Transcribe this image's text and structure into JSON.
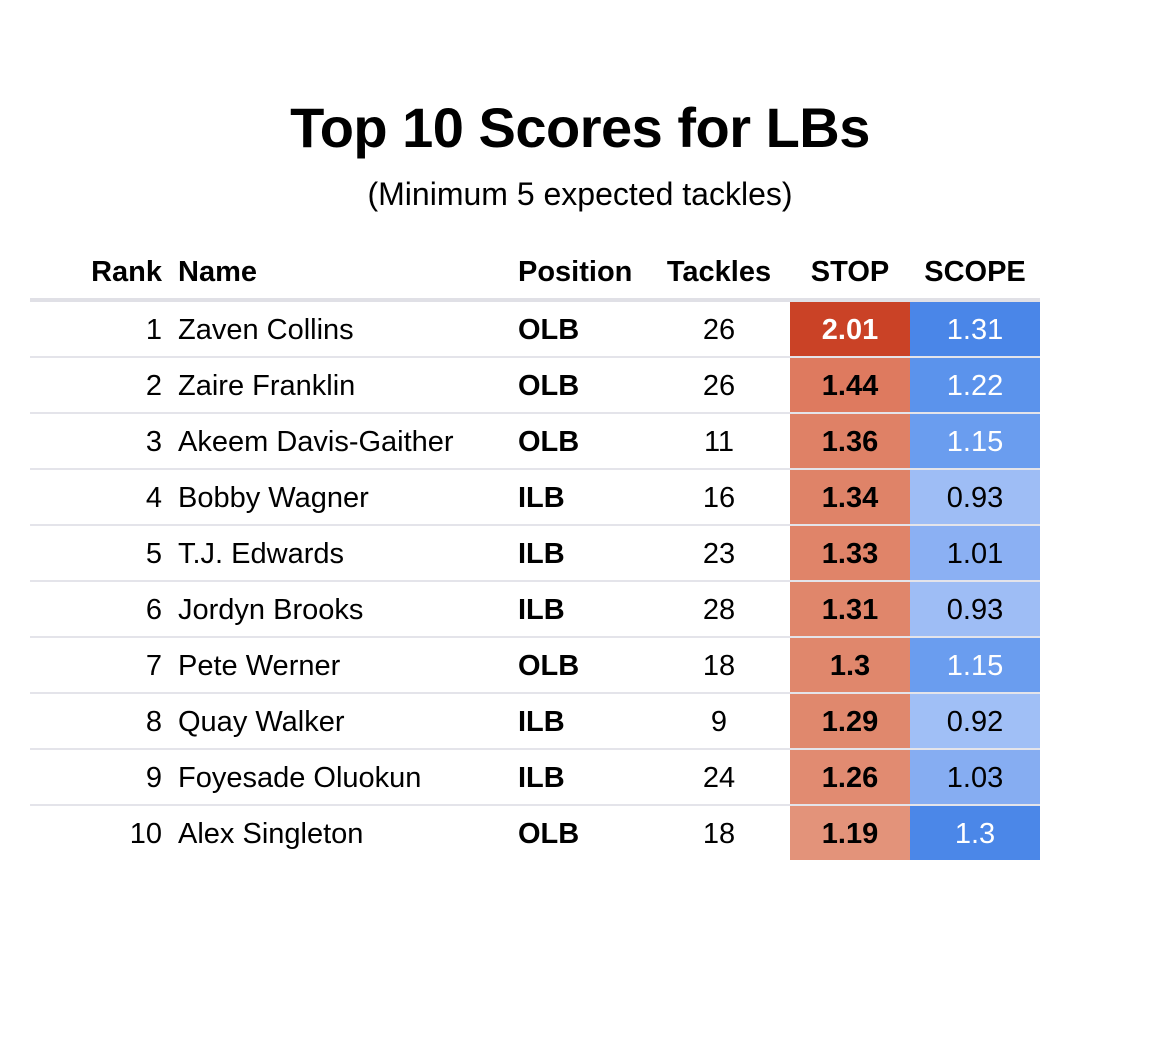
{
  "chart_data": {
    "type": "table",
    "title": "Top 10 Scores for LBs",
    "subtitle": "(Minimum 5 expected tackles)",
    "columns": [
      "Rank",
      "Name",
      "Position",
      "Tackles",
      "STOP",
      "SCOPE"
    ],
    "rows": [
      {
        "rank": "1",
        "name": "Zaven Collins",
        "position": "OLB",
        "tackles": "26",
        "stop": "2.01",
        "scope": "1.31",
        "stop_color": "#ca4226",
        "scope_color": "#4a86e8",
        "stop_text_color": "#ffffff",
        "scope_text_color": "#ffffff"
      },
      {
        "rank": "2",
        "name": "Zaire Franklin",
        "position": "OLB",
        "tackles": "26",
        "stop": "1.44",
        "scope": "1.22",
        "stop_color": "#de7a5f",
        "scope_color": "#5b93ec",
        "stop_text_color": "#000000",
        "scope_text_color": "#ffffff"
      },
      {
        "rank": "3",
        "name": "Akeem Davis-Gaither",
        "position": "OLB",
        "tackles": "11",
        "stop": "1.36",
        "scope": "1.15",
        "stop_color": "#df8166",
        "scope_color": "#6a9def",
        "stop_text_color": "#000000",
        "scope_text_color": "#ffffff"
      },
      {
        "rank": "4",
        "name": "Bobby Wagner",
        "position": "ILB",
        "tackles": "16",
        "stop": "1.34",
        "scope": "0.93",
        "stop_color": "#df8368",
        "scope_color": "#9ebdf5",
        "stop_text_color": "#000000",
        "scope_text_color": "#000000"
      },
      {
        "rank": "5",
        "name": "T.J. Edwards",
        "position": "ILB",
        "tackles": "23",
        "stop": "1.33",
        "scope": "1.01",
        "stop_color": "#e08469",
        "scope_color": "#8bb0f3",
        "stop_text_color": "#000000",
        "scope_text_color": "#000000"
      },
      {
        "rank": "6",
        "name": "Jordyn Brooks",
        "position": "ILB",
        "tackles": "28",
        "stop": "1.31",
        "scope": "0.93",
        "stop_color": "#e0866b",
        "scope_color": "#9ebdf5",
        "stop_text_color": "#000000",
        "scope_text_color": "#000000"
      },
      {
        "rank": "7",
        "name": "Pete Werner",
        "position": "OLB",
        "tackles": "18",
        "stop": "1.3",
        "scope": "1.15",
        "stop_color": "#e0876c",
        "scope_color": "#6a9def",
        "stop_text_color": "#000000",
        "scope_text_color": "#ffffff"
      },
      {
        "rank": "8",
        "name": "Quay Walker",
        "position": "ILB",
        "tackles": "9",
        "stop": "1.29",
        "scope": "0.92",
        "stop_color": "#e0886d",
        "scope_color": "#a0bff6",
        "stop_text_color": "#000000",
        "scope_text_color": "#000000"
      },
      {
        "rank": "9",
        "name": "Foyesade Oluokun",
        "position": "ILB",
        "tackles": "24",
        "stop": "1.26",
        "scope": "1.03",
        "stop_color": "#e18b71",
        "scope_color": "#86adf2",
        "stop_text_color": "#000000",
        "scope_text_color": "#000000"
      },
      {
        "rank": "10",
        "name": "Alex Singleton",
        "position": "OLB",
        "tackles": "18",
        "stop": "1.19",
        "scope": "1.3",
        "stop_color": "#e3937a",
        "scope_color": "#4b87e8",
        "stop_text_color": "#000000",
        "scope_text_color": "#ffffff"
      }
    ]
  }
}
